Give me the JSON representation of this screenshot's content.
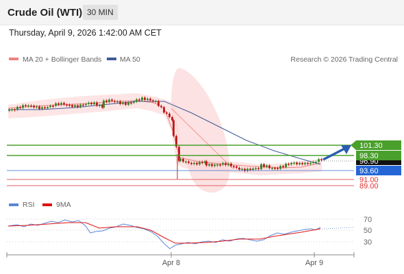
{
  "header": {
    "title": "Crude Oil (WTI)",
    "timeframe": "30 MIN"
  },
  "datetime": "Thursday, April 9, 2026 1:42:00 AM CET",
  "legend": {
    "ma20_label": "MA 20 + Bollinger Bands",
    "ma50_label": "MA 50",
    "copyright": "Research © 2026 Trading Central",
    "rsi_label": "RSI",
    "ma9_label": "9MA"
  },
  "colors": {
    "bullish": "#3a8a2a",
    "bearish": "#c02020",
    "ma20": "#f08080",
    "ma50": "#3d5a99",
    "resistance": "#4aa02c",
    "pivot": "#2566d6",
    "support": "#e06060",
    "arrow": "#2a5db0"
  },
  "chart_data": [
    {
      "type": "line",
      "name": "price",
      "x_labels": [
        "Apr 8",
        "Apr 9"
      ],
      "levels": [
        {
          "value": 101.3,
          "label": "101.30",
          "kind": "resistance"
        },
        {
          "value": 98.3,
          "label": "98.30",
          "kind": "resistance"
        },
        {
          "value": 96.9,
          "label": "96.90",
          "kind": "current"
        },
        {
          "value": 93.6,
          "label": "93.60",
          "kind": "pivot"
        },
        {
          "value": 91.0,
          "label": "91.00",
          "kind": "support"
        },
        {
          "value": 89.0,
          "label": "89.00",
          "kind": "support"
        }
      ],
      "ylim": [
        89,
        104
      ]
    },
    {
      "type": "line",
      "name": "rsi",
      "y_ticks": [
        70,
        50,
        30
      ],
      "ylim": [
        20,
        80
      ]
    }
  ]
}
